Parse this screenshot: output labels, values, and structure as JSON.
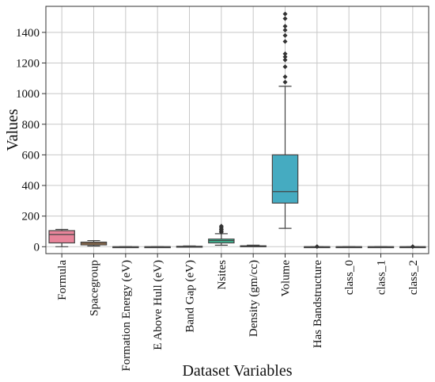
{
  "chart_data": {
    "type": "box",
    "xlabel": "Dataset Variables",
    "ylabel": "Values",
    "ylim": [
      -45,
      1570
    ],
    "yticks": [
      0,
      200,
      400,
      600,
      800,
      1000,
      1200,
      1400
    ],
    "grid": true,
    "categories": [
      "Formula",
      "Spacegroup",
      "Formation Energy (eV)",
      "E Above Hull (eV)",
      "Band Gap (eV)",
      "Nsites",
      "Density (gm/cc)",
      "Volume",
      "Has Bandstructure",
      "class_0",
      "class_1",
      "class_2"
    ],
    "colors": [
      "#e8849a",
      "#c88a4e",
      "#a6a04a",
      "#8aab4f",
      "#5cb86a",
      "#3db894",
      "#3fb6a6",
      "#45abc1",
      "#7ea7d8",
      "#b49ae3",
      "#d88de0",
      "#e98cb8"
    ],
    "boxes": [
      {
        "min": 0,
        "q1": 25,
        "median": 80,
        "q3": 105,
        "max": 113,
        "outliers": []
      },
      {
        "min": 5,
        "q1": 12,
        "median": 22,
        "q3": 30,
        "max": 40,
        "outliers": []
      },
      {
        "min": -5,
        "q1": -2,
        "median": -1,
        "q3": 0,
        "max": 1,
        "outliers": []
      },
      {
        "min": -1,
        "q1": 0,
        "median": 0,
        "q3": 0,
        "max": 1,
        "outliers": []
      },
      {
        "min": 0,
        "q1": 0,
        "median": 1,
        "q3": 3,
        "max": 5,
        "outliers": []
      },
      {
        "min": 10,
        "q1": 25,
        "median": 40,
        "q3": 50,
        "max": 85,
        "outliers": [
          95,
          100,
          110,
          115,
          125,
          135
        ]
      },
      {
        "min": 1,
        "q1": 3,
        "median": 4,
        "q3": 6,
        "max": 10,
        "outliers": []
      },
      {
        "min": 120,
        "q1": 285,
        "median": 360,
        "q3": 600,
        "max": 1048,
        "outliers": [
          1075,
          1110,
          1175,
          1220,
          1240,
          1260,
          1340,
          1380,
          1415,
          1440,
          1490,
          1520
        ]
      },
      {
        "min": 0,
        "q1": 0,
        "median": 0,
        "q3": 0,
        "max": 0,
        "outliers": [
          1
        ]
      },
      {
        "min": 0,
        "q1": 0,
        "median": 0,
        "q3": 0,
        "max": 1,
        "outliers": []
      },
      {
        "min": 0,
        "q1": 0,
        "median": 0,
        "q3": 0,
        "max": 1,
        "outliers": []
      },
      {
        "min": 0,
        "q1": 0,
        "median": 0,
        "q3": 0,
        "max": 0,
        "outliers": [
          1
        ]
      }
    ]
  }
}
